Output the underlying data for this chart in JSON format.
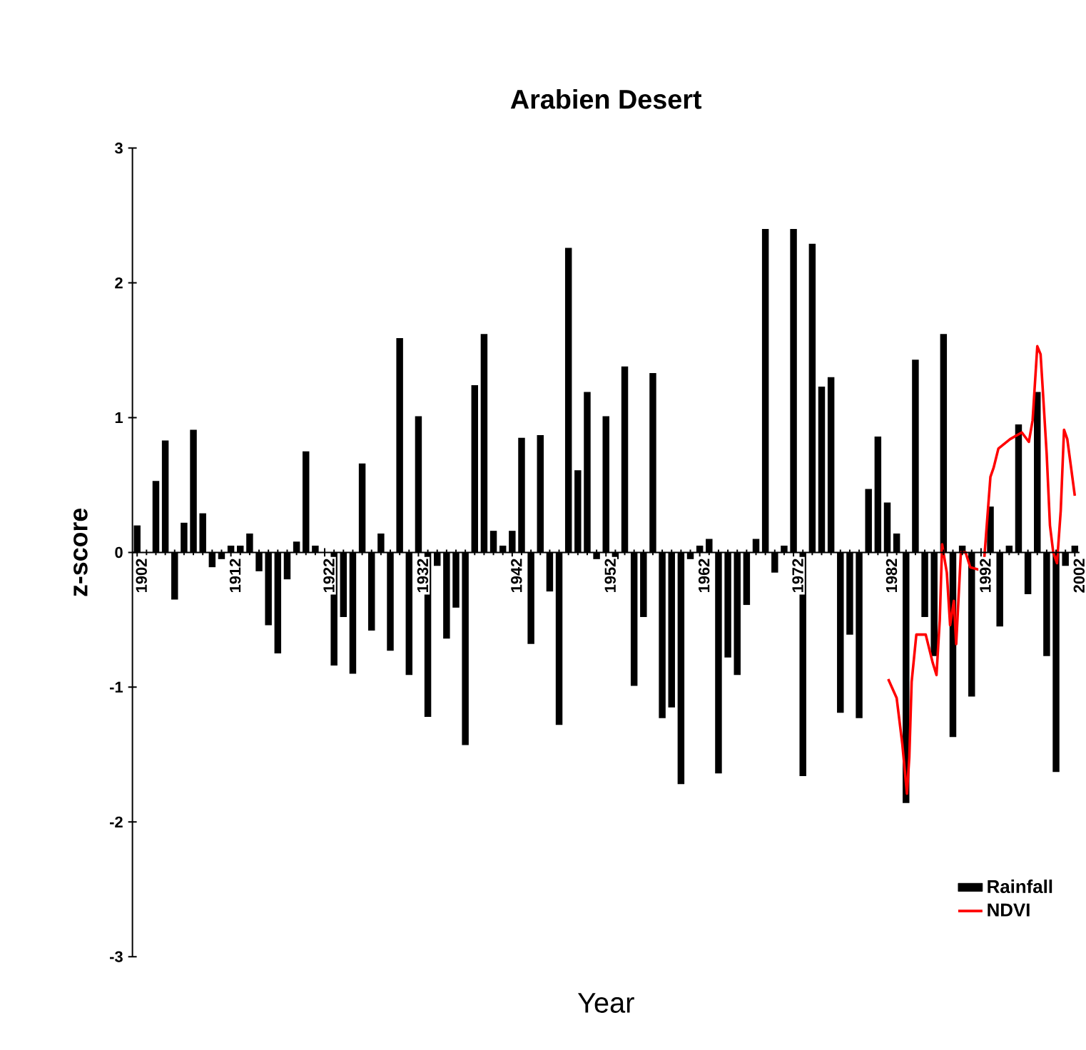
{
  "chart_data": {
    "type": "bar",
    "title": "Arabien Desert",
    "xlabel": "Year",
    "ylabel": "z-score",
    "x": [
      1902,
      1903,
      1904,
      1905,
      1906,
      1907,
      1908,
      1909,
      1910,
      1911,
      1912,
      1913,
      1914,
      1915,
      1916,
      1917,
      1918,
      1919,
      1920,
      1921,
      1922,
      1923,
      1924,
      1925,
      1926,
      1927,
      1928,
      1929,
      1930,
      1931,
      1932,
      1933,
      1934,
      1935,
      1936,
      1937,
      1938,
      1939,
      1940,
      1941,
      1942,
      1943,
      1944,
      1945,
      1946,
      1947,
      1948,
      1949,
      1950,
      1951,
      1952,
      1953,
      1954,
      1955,
      1956,
      1957,
      1958,
      1959,
      1960,
      1961,
      1962,
      1963,
      1964,
      1965,
      1966,
      1967,
      1968,
      1969,
      1970,
      1971,
      1972,
      1973,
      1974,
      1975,
      1976,
      1977,
      1978,
      1979,
      1980,
      1981,
      1982,
      1983,
      1984,
      1985,
      1986,
      1987,
      1988,
      1989,
      1990,
      1991,
      1992,
      1993,
      1994,
      1995,
      1996,
      1997,
      1998,
      1999,
      2000,
      2001,
      2002
    ],
    "series": [
      {
        "name": "Rainfall",
        "color": "#000000",
        "values": [
          0.2,
          null,
          0.53,
          0.83,
          -0.35,
          0.22,
          0.91,
          0.29,
          -0.11,
          -0.05,
          0.05,
          0.05,
          0.14,
          -0.14,
          -0.54,
          -0.75,
          -0.2,
          0.08,
          0.75,
          0.05,
          null,
          -0.84,
          -0.48,
          -0.9,
          0.66,
          -0.58,
          0.14,
          -0.73,
          1.59,
          -0.91,
          1.01,
          -1.22,
          -0.1,
          -0.64,
          -0.41,
          -1.43,
          1.24,
          1.62,
          0.16,
          0.05,
          0.16,
          0.85,
          -0.68,
          0.87,
          -0.29,
          -1.28,
          2.26,
          0.61,
          1.19,
          -0.05,
          1.01,
          -0.05,
          1.38,
          -0.99,
          -0.48,
          1.33,
          -1.23,
          -1.15,
          -1.72,
          -0.05,
          0.05,
          0.1,
          -1.64,
          -0.78,
          -0.91,
          -0.39,
          0.1,
          2.4,
          -0.15,
          0.05,
          2.4,
          -1.66,
          2.29,
          1.23,
          1.3,
          -1.19,
          -0.61,
          -1.23,
          0.47,
          0.86,
          0.37,
          0.14,
          -1.86,
          1.43,
          -0.48,
          -0.77,
          1.62,
          -1.37,
          0.05,
          -1.07,
          null,
          0.34,
          -0.55,
          0.05,
          0.95,
          -0.31,
          1.19,
          -0.77,
          -1.63,
          -0.1,
          0.05
        ]
      },
      {
        "name": "NDVI",
        "type": "line",
        "color": "#ff0000",
        "x": [
          1982.1,
          1983.0,
          1983.6,
          1984.1,
          1984.35,
          1984.6,
          1985.1,
          1986.1,
          1986.85,
          1987.25,
          1987.6,
          1987.85,
          1988.35,
          1988.7,
          1989.1,
          1989.35,
          1989.85,
          1990.35,
          1990.85,
          1991.85,
          1992.35,
          1993.0,
          1993.35,
          1993.85,
          1995.1,
          1996.35,
          1997.1,
          1997.5,
          1998.0,
          1998.35,
          1998.6,
          1999.0,
          1999.35,
          1999.7,
          2000.1,
          2000.5,
          2000.85,
          2001.2,
          2001.6,
          2002.0
        ],
        "values": [
          -0.94,
          -1.08,
          -1.42,
          -1.79,
          -1.52,
          -0.96,
          -0.61,
          -0.61,
          -0.82,
          -0.91,
          -0.5,
          0.06,
          -0.15,
          -0.54,
          -0.36,
          -0.68,
          0.0,
          0.0,
          -0.11,
          -0.13,
          -0.04,
          0.56,
          0.63,
          0.77,
          0.84,
          0.89,
          0.82,
          0.98,
          1.53,
          1.47,
          1.19,
          0.73,
          0.2,
          0.0,
          -0.08,
          0.31,
          0.91,
          0.84,
          0.63,
          0.42
        ]
      }
    ],
    "xlim": [
      1901.5,
      2002.5
    ],
    "xticks": [
      1902,
      1912,
      1922,
      1932,
      1942,
      1952,
      1962,
      1972,
      1982,
      1992,
      2002
    ],
    "ylim": [
      -3,
      3
    ],
    "yticks": [
      -3,
      -2,
      -1,
      0,
      1,
      2,
      3
    ],
    "legend": "bottom right",
    "grid": false,
    "marker": "none",
    "line_style": "solid"
  }
}
